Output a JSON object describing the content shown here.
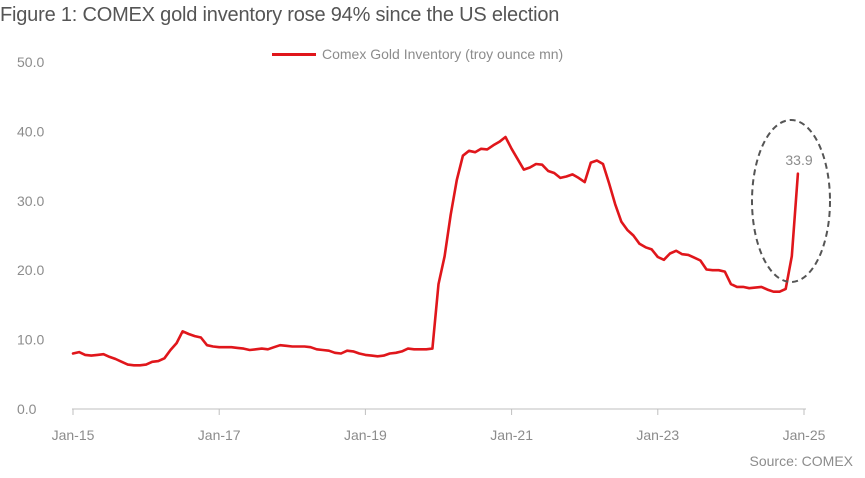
{
  "title": "Figure 1: COMEX gold inventory rose 94% since the US election",
  "source": "Source: COMEX",
  "colors": {
    "series": "#e0161b",
    "axis": "#bfbfbf",
    "text": "#8c8c8c",
    "ellipse": "#555555"
  },
  "chart_data": {
    "type": "line",
    "title": "Figure 1: COMEX gold inventory rose 94% since the US election",
    "xlabel": "",
    "ylabel": "",
    "ylim": [
      0,
      50
    ],
    "yticks": [
      "0.0",
      "10.0",
      "20.0",
      "30.0",
      "40.0",
      "50.0"
    ],
    "xticks": [
      "Jan-15",
      "Jan-17",
      "Jan-19",
      "Jan-21",
      "Jan-23",
      "Jan-25"
    ],
    "grid": false,
    "legend": "top-center",
    "annotation": {
      "label": "33.9",
      "x": "2024-12",
      "y": 33.9,
      "highlight": "dashed ellipse"
    },
    "series": [
      {
        "name": "Comex Gold Inventory (troy ounce mn)",
        "x": [
          "2015-01",
          "2015-02",
          "2015-03",
          "2015-04",
          "2015-05",
          "2015-06",
          "2015-07",
          "2015-08",
          "2015-09",
          "2015-10",
          "2015-11",
          "2015-12",
          "2016-01",
          "2016-02",
          "2016-03",
          "2016-04",
          "2016-05",
          "2016-06",
          "2016-07",
          "2016-08",
          "2016-09",
          "2016-10",
          "2016-11",
          "2016-12",
          "2017-01",
          "2017-02",
          "2017-03",
          "2017-04",
          "2017-05",
          "2017-06",
          "2017-07",
          "2017-08",
          "2017-09",
          "2017-10",
          "2017-11",
          "2017-12",
          "2018-01",
          "2018-02",
          "2018-03",
          "2018-04",
          "2018-05",
          "2018-06",
          "2018-07",
          "2018-08",
          "2018-09",
          "2018-10",
          "2018-11",
          "2018-12",
          "2019-01",
          "2019-02",
          "2019-03",
          "2019-04",
          "2019-05",
          "2019-06",
          "2019-07",
          "2019-08",
          "2019-09",
          "2019-10",
          "2019-11",
          "2019-12",
          "2020-01",
          "2020-02",
          "2020-03",
          "2020-04",
          "2020-05",
          "2020-06",
          "2020-07",
          "2020-08",
          "2020-09",
          "2020-10",
          "2020-11",
          "2020-12",
          "2021-01",
          "2021-02",
          "2021-03",
          "2021-04",
          "2021-05",
          "2021-06",
          "2021-07",
          "2021-08",
          "2021-09",
          "2021-10",
          "2021-11",
          "2021-12",
          "2022-01",
          "2022-02",
          "2022-03",
          "2022-04",
          "2022-05",
          "2022-06",
          "2022-07",
          "2022-08",
          "2022-09",
          "2022-10",
          "2022-11",
          "2022-12",
          "2023-01",
          "2023-02",
          "2023-03",
          "2023-04",
          "2023-05",
          "2023-06",
          "2023-07",
          "2023-08",
          "2023-09",
          "2023-10",
          "2023-11",
          "2023-12",
          "2024-01",
          "2024-02",
          "2024-03",
          "2024-04",
          "2024-05",
          "2024-06",
          "2024-07",
          "2024-08",
          "2024-09",
          "2024-10",
          "2024-11",
          "2024-12"
        ],
        "values": [
          8.0,
          8.2,
          7.8,
          7.7,
          7.8,
          7.9,
          7.5,
          7.2,
          6.8,
          6.4,
          6.3,
          6.3,
          6.4,
          6.8,
          6.9,
          7.3,
          8.5,
          9.5,
          11.2,
          10.8,
          10.5,
          10.3,
          9.2,
          9.0,
          8.9,
          8.9,
          8.9,
          8.8,
          8.7,
          8.5,
          8.6,
          8.7,
          8.6,
          8.9,
          9.2,
          9.1,
          9.0,
          9.0,
          9.0,
          8.9,
          8.6,
          8.5,
          8.4,
          8.1,
          8.0,
          8.4,
          8.3,
          8.0,
          7.8,
          7.7,
          7.6,
          7.7,
          8.0,
          8.1,
          8.3,
          8.7,
          8.6,
          8.6,
          8.6,
          8.7,
          18.0,
          22.0,
          28.0,
          33.0,
          36.5,
          37.2,
          37.0,
          37.5,
          37.4,
          38.0,
          38.5,
          39.2,
          37.5,
          36.0,
          34.5,
          34.8,
          35.3,
          35.2,
          34.3,
          34.0,
          33.3,
          33.5,
          33.8,
          33.3,
          32.7,
          35.5,
          35.8,
          35.3,
          32.5,
          29.5,
          27.0,
          25.8,
          25.0,
          23.8,
          23.3,
          23.0,
          21.9,
          21.5,
          22.4,
          22.8,
          22.3,
          22.2,
          21.8,
          21.4,
          20.1,
          20.0,
          20.0,
          19.8,
          18.0,
          17.6,
          17.6,
          17.4,
          17.5,
          17.6,
          17.2,
          16.9,
          16.9,
          17.3,
          22.0,
          33.9
        ]
      }
    ]
  }
}
